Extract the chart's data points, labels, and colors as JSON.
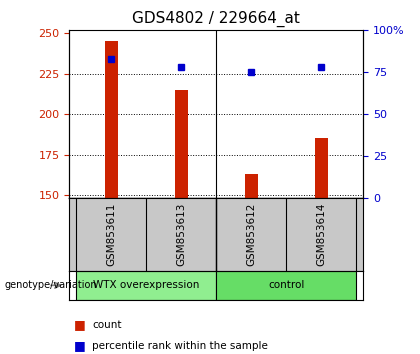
{
  "title": "GDS4802 / 229664_at",
  "samples": [
    "GSM853611",
    "GSM853613",
    "GSM853612",
    "GSM853614"
  ],
  "counts": [
    245,
    215,
    163,
    185
  ],
  "percentiles": [
    83,
    78,
    75,
    78
  ],
  "groups": [
    {
      "label": "WTX overexpression",
      "indices": [
        0,
        1
      ],
      "color": "#90ee90"
    },
    {
      "label": "control",
      "indices": [
        2,
        3
      ],
      "color": "#66dd66"
    }
  ],
  "bar_color": "#cc2200",
  "dot_color": "#0000cc",
  "ylim_left": [
    148,
    252
  ],
  "ylim_right": [
    0,
    100
  ],
  "yticks_left": [
    150,
    175,
    200,
    225,
    250
  ],
  "ytick_labels_left": [
    "150",
    "175",
    "200",
    "225",
    "250"
  ],
  "yticks_right": [
    0,
    25,
    50,
    75,
    100
  ],
  "ytick_labels_right": [
    "0",
    "25",
    "50",
    "75",
    "100%"
  ],
  "bar_width": 0.18,
  "bar_color_rgb": "#b22222",
  "label_gray": "#c8c8c8",
  "group_color_1": "#90ee90",
  "group_color_2": "#66dd66",
  "legend_count_color": "#cc2200",
  "legend_pct_color": "#0000cc"
}
